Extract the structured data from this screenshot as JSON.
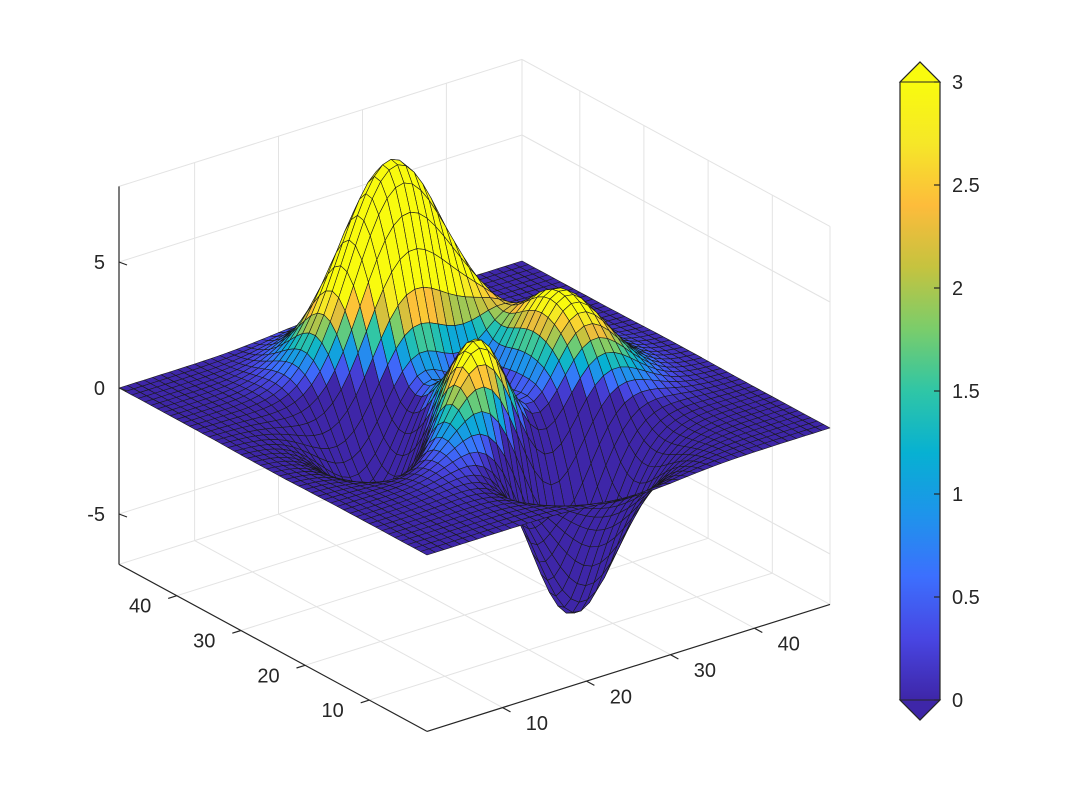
{
  "chart_data": {
    "type": "surface",
    "title": "",
    "xlabel": "",
    "ylabel": "",
    "zlabel": "",
    "surface_function": "peaks",
    "grid_size": 49,
    "x_range": [
      1,
      49
    ],
    "y_range": [
      1,
      49
    ],
    "zlim": [
      -7,
      8
    ],
    "x_ticks": [
      {
        "value": 10,
        "label": "10"
      },
      {
        "value": 20,
        "label": "20"
      },
      {
        "value": 30,
        "label": "30"
      },
      {
        "value": 40,
        "label": "40"
      }
    ],
    "y_ticks": [
      {
        "value": 10,
        "label": "10"
      },
      {
        "value": 20,
        "label": "20"
      },
      {
        "value": 30,
        "label": "30"
      },
      {
        "value": 40,
        "label": "40"
      }
    ],
    "z_ticks": [
      {
        "value": -5,
        "label": "-5"
      },
      {
        "value": 0,
        "label": "0"
      },
      {
        "value": 5,
        "label": "5"
      }
    ],
    "grid": true,
    "colormap": "parula",
    "colorbar": {
      "position": "right",
      "range": [
        0,
        3
      ],
      "extend": "both",
      "ticks": [
        {
          "value": 0,
          "label": "0"
        },
        {
          "value": 0.5,
          "label": "0.5"
        },
        {
          "value": 1,
          "label": "1"
        },
        {
          "value": 1.5,
          "label": "1.5"
        },
        {
          "value": 2,
          "label": "2"
        },
        {
          "value": 2.5,
          "label": "2.5"
        },
        {
          "value": 3,
          "label": "3"
        }
      ]
    },
    "colors": {
      "edge": "#1a1a1a",
      "axis": "#262626",
      "gridline": "#e3e3e3"
    }
  }
}
